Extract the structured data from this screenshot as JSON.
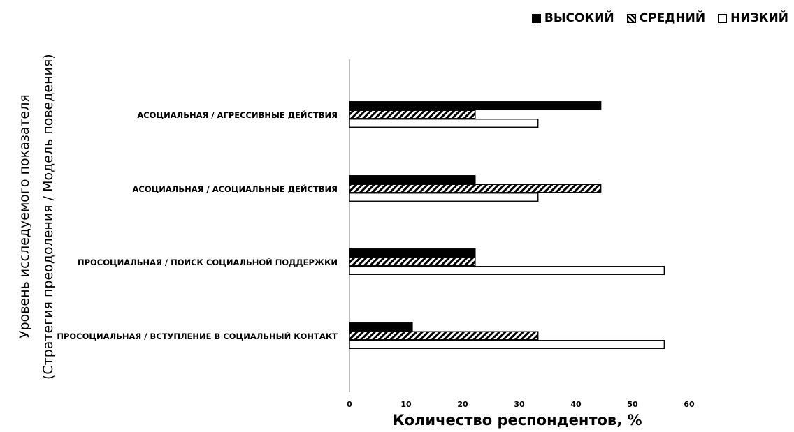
{
  "chart_data": {
    "type": "bar",
    "orientation": "horizontal",
    "categories": [
      "АСОЦИАЛЬНАЯ / АГРЕССИВНЫЕ ДЕЙСТВИЯ",
      "АСОЦИАЛЬНАЯ / АСОЦИАЛЬНЫЕ ДЕЙСТВИЯ",
      "ПРОСОЦИАЛЬНАЯ / ПОИСК СОЦИАЛЬНОЙ ПОДДЕРЖКИ",
      "ПРОСОЦИАЛЬНАЯ / ВСТУПЛЕНИЕ В СОЦИАЛЬНЫЙ КОНТАКТ"
    ],
    "series": [
      {
        "name": "ВЫСОКИЙ",
        "fill": "solid",
        "color": "#000000",
        "values": [
          44.4,
          22.2,
          22.2,
          11.1
        ]
      },
      {
        "name": "СРЕДНИЙ",
        "fill": "hatched",
        "color": "#000000",
        "values": [
          22.2,
          44.4,
          22.2,
          33.3
        ]
      },
      {
        "name": "НИЗКИЙ",
        "fill": "empty",
        "color": "#ffffff",
        "values": [
          33.3,
          33.3,
          55.6,
          55.6
        ]
      }
    ],
    "xlim": [
      0,
      60
    ],
    "xticks": [
      "0",
      "10",
      "20",
      "30",
      "40",
      "50",
      "60"
    ],
    "xlabel": "Количество респондентов, %",
    "ylabel_lines": [
      "Уровень исследуемого показателя",
      "(Стратегия преодоления / Модель поведения)"
    ],
    "legend_position": "top-right",
    "grid": false
  }
}
